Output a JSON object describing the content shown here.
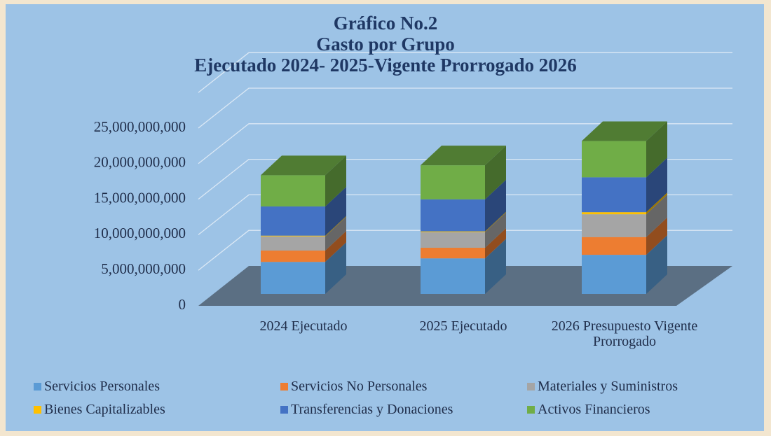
{
  "chart_data": {
    "type": "bar3d_stacked",
    "title": [
      "Gráfico No.2",
      "Gasto por Grupo",
      "Ejecutado 2024- 2025-Vigente Prorrogado 2026"
    ],
    "categories": [
      "2024 Ejecutado",
      "2025 Ejecutado",
      "2026 Presupuesto Vigente Prorrogado"
    ],
    "series": [
      {
        "name": "Servicios Personales",
        "color": "#5b9bd5",
        "values": [
          4500000000,
          5000000000,
          5500000000
        ]
      },
      {
        "name": "Servicios No Personales",
        "color": "#ed7d31",
        "values": [
          1600000000,
          1500000000,
          2500000000
        ]
      },
      {
        "name": "Materiales y Suministros",
        "color": "#a5a5a5",
        "values": [
          2000000000,
          2200000000,
          3200000000
        ]
      },
      {
        "name": "Bienes Capitalizables",
        "color": "#ffc000",
        "values": [
          100000000,
          100000000,
          300000000
        ]
      },
      {
        "name": "Transferencias y Donaciones",
        "color": "#4472c4",
        "values": [
          4100000000,
          4500000000,
          4900000000
        ]
      },
      {
        "name": "Activos Financieros",
        "color": "#70ad47",
        "values": [
          4400000000,
          4800000000,
          5100000000
        ]
      }
    ],
    "ylim": [
      0,
      30000000000
    ],
    "yticks": [
      0,
      {
        "value": 5000000000,
        "label": "5,000,000,000"
      },
      {
        "value": 10000000000,
        "label": "10,000,000,000"
      },
      {
        "value": 15000000000,
        "label": "15,000,000,000"
      },
      {
        "value": 20000000000,
        "label": "20,000,000,000"
      },
      {
        "value": 25000000000,
        "label": "25,000,000,000"
      }
    ],
    "grid": true
  }
}
